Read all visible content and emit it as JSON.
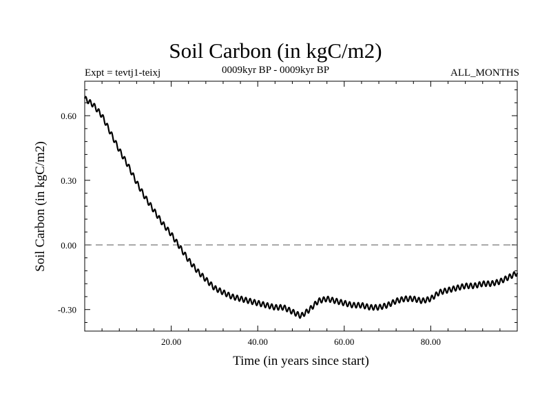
{
  "chart_data": {
    "type": "line",
    "title": "Soil Carbon (in kgC/m2)",
    "experiment": "Expt = tevtj1-teixj",
    "period": "0009kyr BP - 0009kyr BP",
    "months": "ALL_MONTHS",
    "xlabel": "Time (in years since start)",
    "ylabel": "Soil Carbon (in kgC/m2)",
    "xlim": [
      0,
      100
    ],
    "ylim": [
      -0.4,
      0.76
    ],
    "x_ticks": [
      20,
      40,
      60,
      80
    ],
    "x_tick_labels": [
      "20.00",
      "40.00",
      "60.00",
      "80.00"
    ],
    "y_ticks": [
      0.6,
      0.3,
      0.0,
      -0.3
    ],
    "y_tick_labels": [
      "0.60",
      "0.30",
      "0.00",
      "-0.30"
    ],
    "reference_line": {
      "y": 0.0,
      "style": "dashed"
    },
    "series": [
      {
        "name": "Soil Carbon",
        "oscillation_amplitude": 0.012,
        "oscillation_period_years": 1,
        "x": [
          0,
          2,
          4,
          6,
          8,
          10,
          12,
          14,
          16,
          18,
          20,
          22,
          24,
          26,
          28,
          30,
          32,
          34,
          36,
          38,
          40,
          42,
          44,
          46,
          48,
          50,
          52,
          54,
          56,
          58,
          60,
          62,
          64,
          66,
          68,
          70,
          72,
          74,
          76,
          78,
          80,
          82,
          84,
          86,
          88,
          90,
          92,
          94,
          96,
          98,
          100
        ],
        "values": [
          0.68,
          0.65,
          0.6,
          0.52,
          0.44,
          0.37,
          0.29,
          0.22,
          0.16,
          0.1,
          0.05,
          -0.01,
          -0.07,
          -0.12,
          -0.16,
          -0.2,
          -0.22,
          -0.24,
          -0.25,
          -0.26,
          -0.27,
          -0.28,
          -0.29,
          -0.29,
          -0.31,
          -0.33,
          -0.3,
          -0.26,
          -0.25,
          -0.26,
          -0.27,
          -0.28,
          -0.28,
          -0.29,
          -0.29,
          -0.28,
          -0.26,
          -0.25,
          -0.25,
          -0.26,
          -0.25,
          -0.22,
          -0.21,
          -0.2,
          -0.19,
          -0.19,
          -0.18,
          -0.18,
          -0.17,
          -0.15,
          -0.13
        ]
      }
    ]
  }
}
